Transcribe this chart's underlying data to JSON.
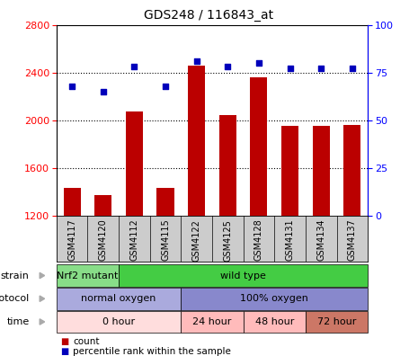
{
  "title": "GDS248 / 116843_at",
  "samples": [
    "GSM4117",
    "GSM4120",
    "GSM4112",
    "GSM4115",
    "GSM4122",
    "GSM4125",
    "GSM4128",
    "GSM4131",
    "GSM4134",
    "GSM4137"
  ],
  "counts": [
    1430,
    1370,
    2070,
    1430,
    2460,
    2040,
    2360,
    1950,
    1950,
    1960
  ],
  "percentiles": [
    68,
    65,
    78,
    68,
    81,
    78,
    80,
    77,
    77,
    77
  ],
  "ylim_left": [
    1200,
    2800
  ],
  "ylim_right": [
    0,
    100
  ],
  "yticks_left": [
    1200,
    1600,
    2000,
    2400,
    2800
  ],
  "yticks_right": [
    0,
    25,
    50,
    75,
    100
  ],
  "bar_color": "#bb0000",
  "dot_color": "#0000bb",
  "strain_groups": [
    {
      "label": "Nrf2 mutant",
      "start": 0,
      "end": 2,
      "color": "#88dd88"
    },
    {
      "label": "wild type",
      "start": 2,
      "end": 10,
      "color": "#44cc44"
    }
  ],
  "protocol_groups": [
    {
      "label": "normal oxygen",
      "start": 0,
      "end": 4,
      "color": "#aaaadd"
    },
    {
      "label": "100% oxygen",
      "start": 4,
      "end": 10,
      "color": "#8888cc"
    }
  ],
  "time_groups": [
    {
      "label": "0 hour",
      "start": 0,
      "end": 4,
      "color": "#ffdddd"
    },
    {
      "label": "24 hour",
      "start": 4,
      "end": 6,
      "color": "#ffbbbb"
    },
    {
      "label": "48 hour",
      "start": 6,
      "end": 8,
      "color": "#ffbbbb"
    },
    {
      "label": "72 hour",
      "start": 8,
      "end": 10,
      "color": "#cc7766"
    }
  ],
  "legend_count_color": "#bb0000",
  "legend_pct_color": "#0000bb",
  "sample_bg": "#cccccc",
  "row_labels": [
    "strain",
    "protocol",
    "time"
  ]
}
